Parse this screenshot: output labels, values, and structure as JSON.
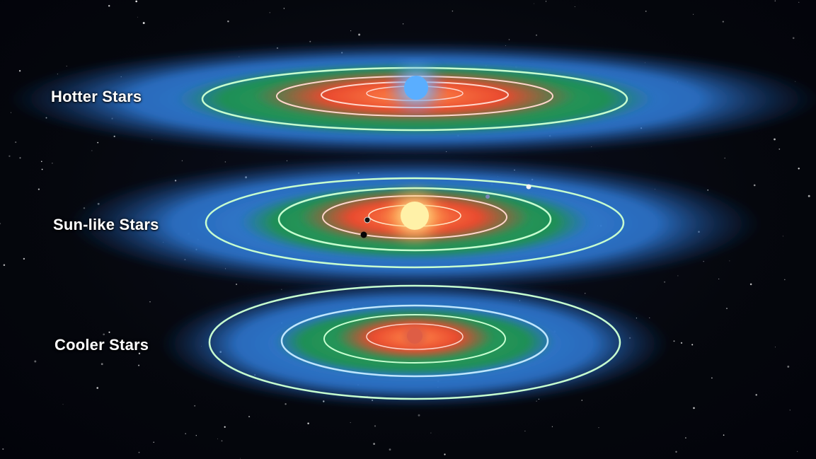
{
  "labels": {
    "hotter": "Hotter Stars",
    "sunlike": "Sun-like Stars",
    "cooler": "Cooler Stars"
  },
  "colors": {
    "outer_disk": "#2e7fd6",
    "habitable_zone": "#1f9a55",
    "too_hot_zone": "#e8452c",
    "orbit_lines": "#bff5c8",
    "hot_star": "#5fb6ff",
    "sun_star": "#ffe58a",
    "cool_star": "#e0604a"
  }
}
